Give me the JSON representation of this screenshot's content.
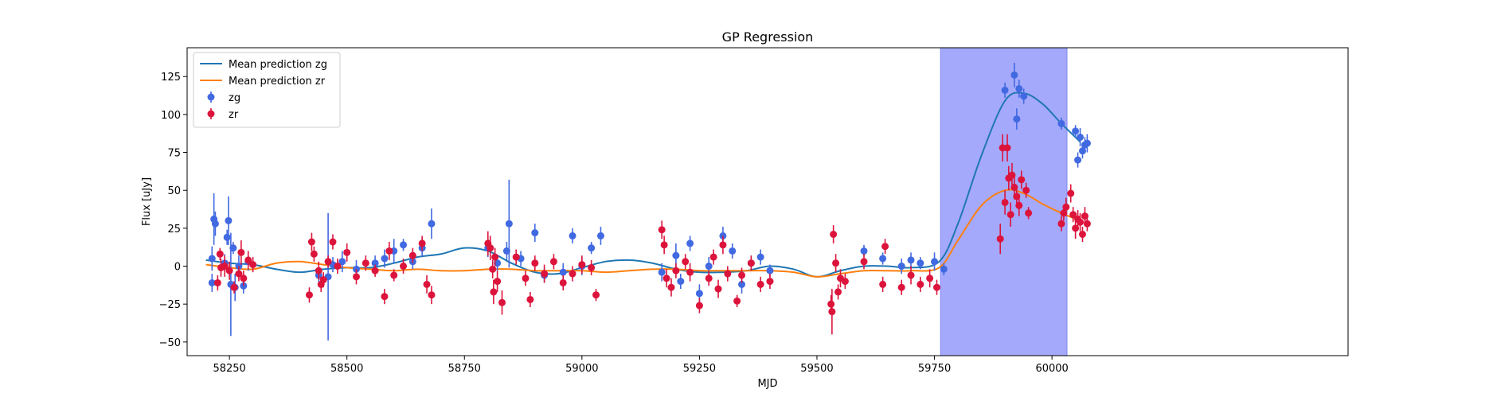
{
  "chart_data": {
    "type": "scatter",
    "title": "GP Regression",
    "xlabel": "MJD",
    "ylabel": "Flux [uJy]",
    "xlim": [
      58160,
      60630
    ],
    "ylim": [
      -59,
      144
    ],
    "xticks": [
      58250,
      58500,
      58750,
      59000,
      59250,
      59500,
      59750,
      60000
    ],
    "yticks": [
      -50,
      -25,
      0,
      25,
      50,
      75,
      100,
      125
    ],
    "legend_position": "upper-left",
    "highlight_span": {
      "x": [
        59763,
        60032
      ],
      "color": "#a5a9fb"
    },
    "lines": [
      {
        "name": "Mean prediction zg",
        "color": "#1f77b4",
        "x": [
          58200,
          58250,
          58300,
          58350,
          58400,
          58450,
          58500,
          58550,
          58600,
          58650,
          58700,
          58750,
          58800,
          58850,
          58900,
          58950,
          59000,
          59050,
          59100,
          59150,
          59200,
          59250,
          59300,
          59350,
          59400,
          59450,
          59500,
          59550,
          59600,
          59650,
          59700,
          59760,
          59800,
          59850,
          59900,
          59940,
          59980,
          60020,
          60060
        ],
        "y": [
          4,
          2,
          1,
          -2,
          -4,
          -2,
          -1,
          -1,
          2,
          6,
          8,
          12,
          10,
          2,
          -4,
          -5,
          -1,
          3,
          4,
          2,
          -2,
          -4,
          -4,
          -3,
          0,
          -2,
          -7,
          -3,
          0,
          0,
          -1,
          3,
          28,
          73,
          109,
          114,
          107,
          94,
          82
        ]
      },
      {
        "name": "Mean prediction zr",
        "color": "#ff7f0e",
        "x": [
          58200,
          58250,
          58300,
          58350,
          58400,
          58450,
          58500,
          58550,
          58600,
          58650,
          58700,
          58750,
          58800,
          58850,
          58900,
          58950,
          59000,
          59050,
          59100,
          59150,
          59200,
          59250,
          59300,
          59350,
          59400,
          59450,
          59500,
          59550,
          59600,
          59650,
          59700,
          59760,
          59800,
          59850,
          59900,
          59940,
          59980,
          60020,
          60060
        ],
        "y": [
          1,
          -1,
          -2,
          2,
          3,
          1,
          -1,
          -2,
          -3,
          -2,
          -3,
          -3,
          -2,
          -2,
          -3,
          -3,
          -3,
          -4,
          -3,
          -2,
          -2,
          -3,
          -3,
          -3,
          -3,
          -4,
          -7,
          -5,
          -3,
          -3,
          -3,
          -1,
          17,
          40,
          50,
          48,
          41,
          35,
          30
        ]
      }
    ],
    "series": [
      {
        "name": "zg",
        "color": "#4169e1",
        "points": [
          [
            58213,
            5,
            8
          ],
          [
            58217,
            31,
            17
          ],
          [
            58220,
            28,
            8
          ],
          [
            58213,
            -11,
            6
          ],
          [
            58240,
            2,
            6
          ],
          [
            58245,
            19,
            5
          ],
          [
            58248,
            30,
            16
          ],
          [
            58253,
            -12,
            34
          ],
          [
            58258,
            12,
            4
          ],
          [
            58262,
            -14,
            9
          ],
          [
            58270,
            0,
            7
          ],
          [
            58280,
            -13,
            5
          ],
          [
            58290,
            3,
            6
          ],
          [
            58440,
            -6,
            6
          ],
          [
            58460,
            -7,
            42
          ],
          [
            58470,
            1,
            5
          ],
          [
            58490,
            3,
            7
          ],
          [
            58520,
            -2,
            6
          ],
          [
            58560,
            2,
            5
          ],
          [
            58580,
            5,
            6
          ],
          [
            58600,
            10,
            8
          ],
          [
            58620,
            14,
            4
          ],
          [
            58640,
            3,
            5
          ],
          [
            58660,
            12,
            6
          ],
          [
            58680,
            28,
            10
          ],
          [
            58800,
            12,
            6
          ],
          [
            58820,
            2,
            5
          ],
          [
            58840,
            10,
            6
          ],
          [
            58845,
            28,
            29
          ],
          [
            58870,
            5,
            5
          ],
          [
            58900,
            22,
            6
          ],
          [
            58920,
            -6,
            5
          ],
          [
            58960,
            -4,
            6
          ],
          [
            58980,
            20,
            5
          ],
          [
            59000,
            0,
            6
          ],
          [
            59020,
            12,
            4
          ],
          [
            59040,
            20,
            6
          ],
          [
            59170,
            -4,
            6
          ],
          [
            59200,
            7,
            8
          ],
          [
            59210,
            -10,
            5
          ],
          [
            59230,
            15,
            5
          ],
          [
            59250,
            -18,
            6
          ],
          [
            59270,
            0,
            6
          ],
          [
            59300,
            20,
            6
          ],
          [
            59320,
            10,
            5
          ],
          [
            59340,
            -12,
            6
          ],
          [
            59360,
            2,
            5
          ],
          [
            59380,
            6,
            5
          ],
          [
            59400,
            -3,
            4
          ],
          [
            59600,
            10,
            4
          ],
          [
            59640,
            5,
            4
          ],
          [
            59680,
            0,
            5
          ],
          [
            59700,
            4,
            5
          ],
          [
            59720,
            2,
            4
          ],
          [
            59750,
            3,
            6
          ],
          [
            59770,
            -2,
            4
          ],
          [
            59900,
            116,
            5
          ],
          [
            59920,
            126,
            8
          ],
          [
            59925,
            97,
            7
          ],
          [
            59930,
            117,
            6
          ],
          [
            59940,
            112,
            5
          ],
          [
            60020,
            94,
            4
          ],
          [
            60050,
            89,
            4
          ],
          [
            60055,
            70,
            5
          ],
          [
            60060,
            85,
            6
          ],
          [
            60065,
            76,
            5
          ],
          [
            60070,
            80,
            5
          ],
          [
            60075,
            81,
            6
          ]
        ]
      },
      {
        "name": "zr",
        "color": "#dc143c",
        "points": [
          [
            58225,
            -11,
            5
          ],
          [
            58230,
            8,
            4
          ],
          [
            58232,
            -1,
            6
          ],
          [
            58240,
            0,
            7
          ],
          [
            58250,
            -3,
            6
          ],
          [
            58260,
            -14,
            4
          ],
          [
            58270,
            -5,
            5
          ],
          [
            58275,
            9,
            8
          ],
          [
            58280,
            -8,
            5
          ],
          [
            58290,
            4,
            6
          ],
          [
            58300,
            1,
            5
          ],
          [
            58420,
            -19,
            5
          ],
          [
            58425,
            16,
            6
          ],
          [
            58430,
            8,
            5
          ],
          [
            58440,
            -3,
            6
          ],
          [
            58445,
            -12,
            5
          ],
          [
            58450,
            -9,
            5
          ],
          [
            58460,
            3,
            4
          ],
          [
            58470,
            16,
            5
          ],
          [
            58480,
            0,
            5
          ],
          [
            58500,
            9,
            6
          ],
          [
            58520,
            -7,
            5
          ],
          [
            58540,
            2,
            5
          ],
          [
            58560,
            -3,
            4
          ],
          [
            58580,
            -20,
            5
          ],
          [
            58590,
            10,
            6
          ],
          [
            58600,
            -6,
            4
          ],
          [
            58620,
            0,
            5
          ],
          [
            58640,
            7,
            5
          ],
          [
            58660,
            15,
            5
          ],
          [
            58670,
            -12,
            6
          ],
          [
            58680,
            -19,
            6
          ],
          [
            58800,
            15,
            8
          ],
          [
            58805,
            12,
            8
          ],
          [
            58810,
            -2,
            6
          ],
          [
            58812,
            -17,
            8
          ],
          [
            58815,
            6,
            6
          ],
          [
            58820,
            -10,
            7
          ],
          [
            58830,
            -24,
            8
          ],
          [
            58860,
            6,
            5
          ],
          [
            58880,
            -8,
            5
          ],
          [
            58890,
            -22,
            5
          ],
          [
            58900,
            2,
            5
          ],
          [
            58920,
            -5,
            6
          ],
          [
            58940,
            3,
            5
          ],
          [
            58960,
            -11,
            5
          ],
          [
            58980,
            -5,
            5
          ],
          [
            59000,
            1,
            6
          ],
          [
            59020,
            -1,
            5
          ],
          [
            59030,
            -19,
            4
          ],
          [
            59170,
            24,
            6
          ],
          [
            59175,
            14,
            6
          ],
          [
            59180,
            -8,
            6
          ],
          [
            59190,
            -14,
            6
          ],
          [
            59200,
            -3,
            5
          ],
          [
            59220,
            3,
            5
          ],
          [
            59230,
            -4,
            6
          ],
          [
            59250,
            -26,
            5
          ],
          [
            59270,
            -8,
            5
          ],
          [
            59280,
            6,
            5
          ],
          [
            59290,
            -15,
            6
          ],
          [
            59300,
            14,
            6
          ],
          [
            59310,
            -5,
            5
          ],
          [
            59330,
            -23,
            4
          ],
          [
            59340,
            -6,
            5
          ],
          [
            59360,
            2,
            5
          ],
          [
            59380,
            -12,
            5
          ],
          [
            59400,
            -10,
            5
          ],
          [
            59530,
            -25,
            6
          ],
          [
            59532,
            -30,
            15
          ],
          [
            59535,
            21,
            6
          ],
          [
            59540,
            2,
            6
          ],
          [
            59545,
            -17,
            5
          ],
          [
            59550,
            -8,
            6
          ],
          [
            59560,
            -10,
            5
          ],
          [
            59600,
            3,
            5
          ],
          [
            59640,
            -12,
            5
          ],
          [
            59645,
            13,
            5
          ],
          [
            59680,
            -14,
            5
          ],
          [
            59700,
            -6,
            6
          ],
          [
            59720,
            -12,
            5
          ],
          [
            59740,
            -8,
            6
          ],
          [
            59755,
            -14,
            5
          ],
          [
            59890,
            18,
            10
          ],
          [
            59895,
            78,
            9
          ],
          [
            59900,
            42,
            8
          ],
          [
            59905,
            78,
            9
          ],
          [
            59908,
            58,
            8
          ],
          [
            59912,
            34,
            8
          ],
          [
            59915,
            60,
            8
          ],
          [
            59920,
            52,
            8
          ],
          [
            59925,
            46,
            7
          ],
          [
            59930,
            40,
            7
          ],
          [
            59935,
            57,
            6
          ],
          [
            59945,
            50,
            5
          ],
          [
            59950,
            35,
            4
          ],
          [
            60020,
            28,
            5
          ],
          [
            60025,
            35,
            5
          ],
          [
            60030,
            39,
            6
          ],
          [
            60040,
            48,
            6
          ],
          [
            60045,
            34,
            5
          ],
          [
            60050,
            25,
            7
          ],
          [
            60055,
            31,
            6
          ],
          [
            60060,
            29,
            6
          ],
          [
            60065,
            21,
            5
          ],
          [
            60070,
            33,
            6
          ],
          [
            60075,
            28,
            5
          ]
        ]
      }
    ]
  }
}
